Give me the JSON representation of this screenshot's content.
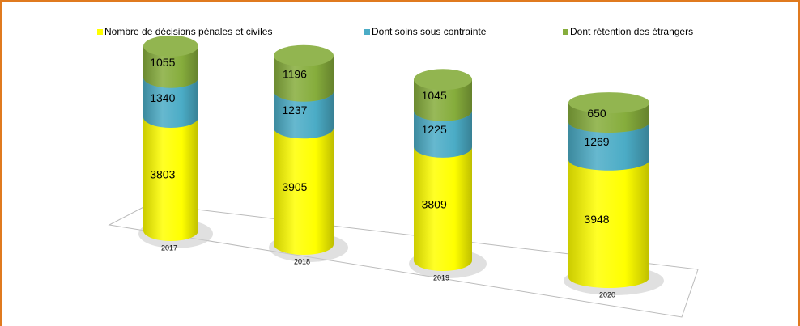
{
  "chart_data": {
    "type": "stacked-cylinder",
    "categories": [
      "2017",
      "2018",
      "2019",
      "2020"
    ],
    "series": [
      {
        "name": "Nombre de décisions pénales et civiles",
        "color": "#ffff00",
        "values": [
          3803,
          3905,
          3809,
          3948
        ]
      },
      {
        "name": "Dont soins sous contrainte",
        "color": "#4bacc6",
        "values": [
          1340,
          1237,
          1225,
          1269
        ]
      },
      {
        "name": "Dont rétention des étrangers",
        "color": "#86ad3c",
        "values": [
          1055,
          1196,
          1045,
          650
        ]
      }
    ]
  }
}
